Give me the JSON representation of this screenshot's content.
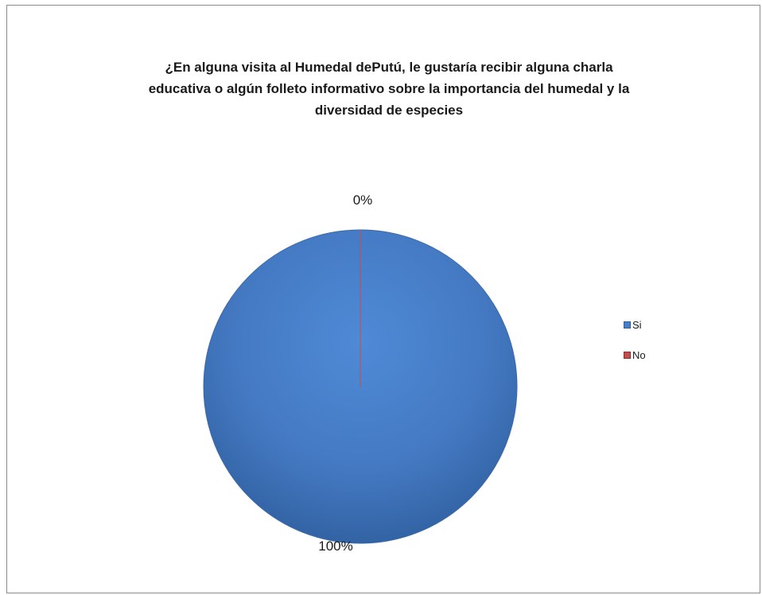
{
  "chart_data": {
    "type": "pie",
    "title": "¿En alguna visita al Humedal dePutú, le gustaría recibir alguna charla educativa o algún folleto informativo sobre la importancia del humedal y la diversidad de especies",
    "title_lines": [
      "¿En alguna visita al Humedal dePutú, le gustaría recibir alguna charla",
      "educativa o algún folleto informativo sobre la importancia del humedal y la",
      "diversidad de especies"
    ],
    "categories": [
      "Si",
      "No"
    ],
    "values": [
      100,
      0
    ],
    "data_labels": [
      "100%",
      "0%"
    ],
    "colors": [
      "#4a7ec8",
      "#c0504d"
    ],
    "legend_position": "right"
  }
}
